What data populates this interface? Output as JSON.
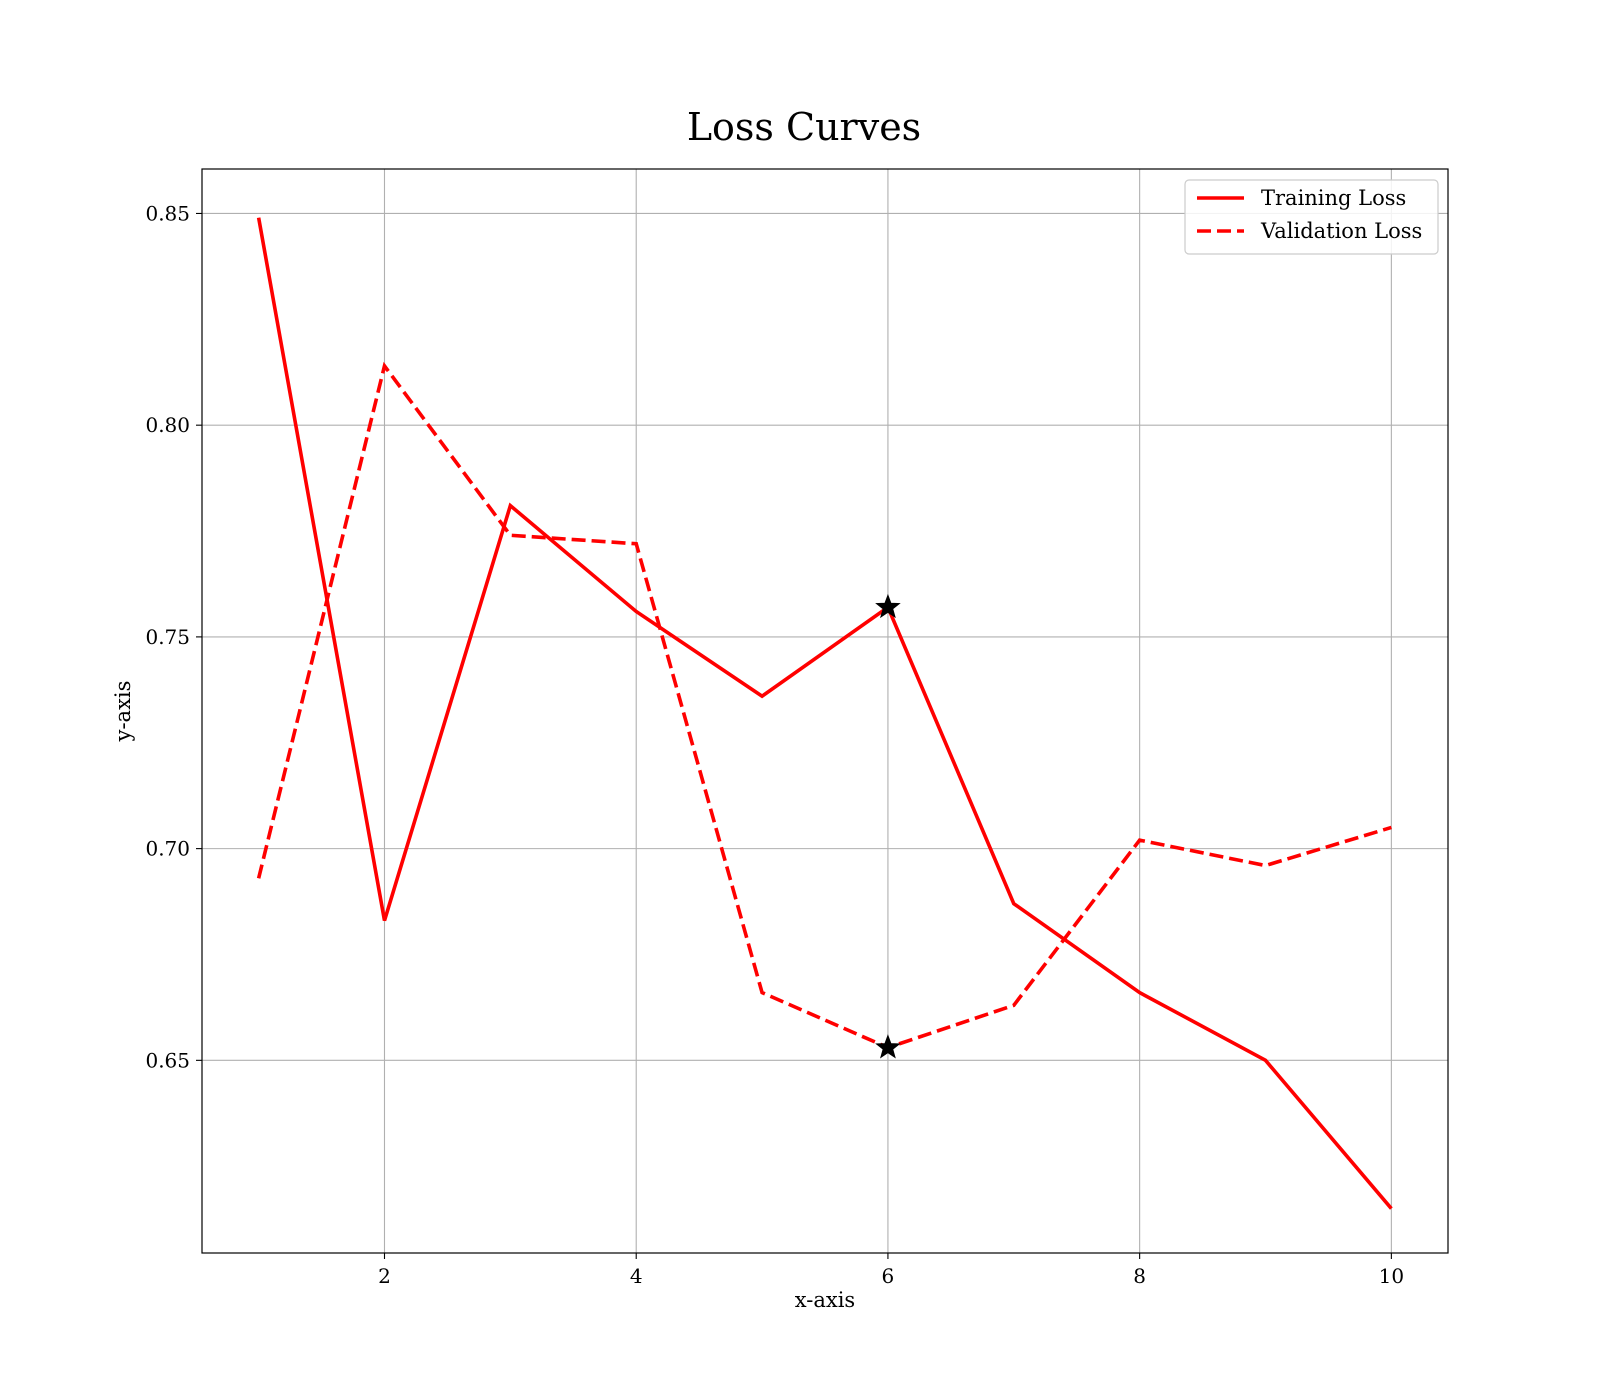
{
  "chart_data": {
    "type": "line",
    "title": "Loss Curves",
    "xlabel": "x-axis",
    "ylabel": "y-axis",
    "xlim": [
      0.55,
      10.45
    ],
    "ylim": [
      0.6045,
      0.8605
    ],
    "xticks": [
      2,
      4,
      6,
      8,
      10
    ],
    "xtick_labels": [
      "2",
      "4",
      "6",
      "8",
      "10"
    ],
    "yticks": [
      0.65,
      0.7,
      0.75,
      0.8,
      0.85
    ],
    "ytick_labels": [
      "0.65",
      "0.70",
      "0.75",
      "0.80",
      "0.85"
    ],
    "grid": true,
    "legend_position": "top-right",
    "x": [
      1,
      2,
      3,
      4,
      5,
      6,
      7,
      8,
      9,
      10
    ],
    "series": [
      {
        "name": "Training Loss",
        "values": [
          0.849,
          0.683,
          0.781,
          0.756,
          0.736,
          0.757,
          0.687,
          0.666,
          0.65,
          0.615
        ],
        "color": "#ff0000",
        "line_style": "solid"
      },
      {
        "name": "Validation Loss",
        "values": [
          0.693,
          0.814,
          0.774,
          0.772,
          0.666,
          0.653,
          0.663,
          0.702,
          0.696,
          0.705
        ],
        "color": "#ff0000",
        "line_style": "dashed"
      }
    ],
    "markers": [
      {
        "series": "Training Loss",
        "x": 6,
        "y": 0.757,
        "shape": "star",
        "color": "#000000"
      },
      {
        "series": "Validation Loss",
        "x": 6,
        "y": 0.653,
        "shape": "star",
        "color": "#000000"
      }
    ]
  }
}
